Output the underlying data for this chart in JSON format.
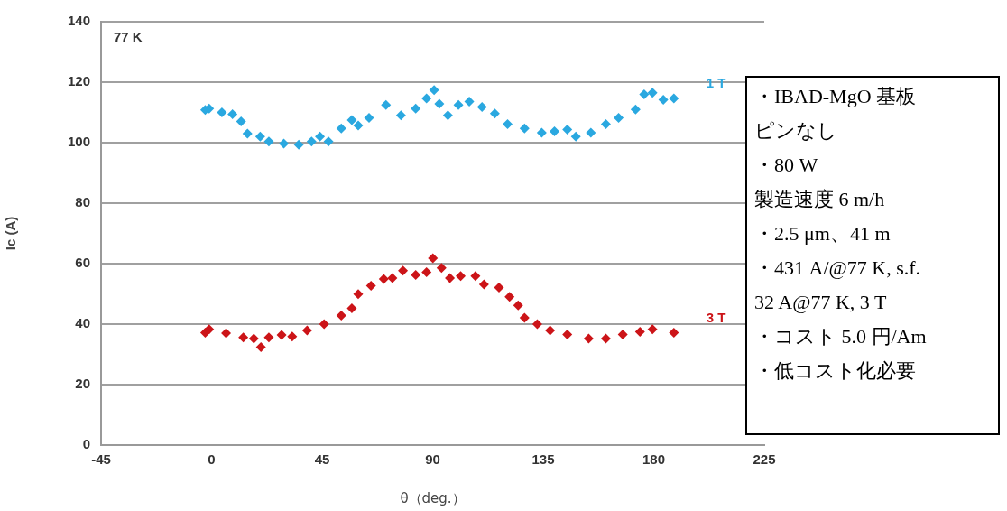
{
  "chart_data": {
    "type": "scatter",
    "xlabel": "θ（deg.）",
    "ylabel": "Ic (A)",
    "xlim": [
      -45,
      225
    ],
    "xticks": [
      -45,
      0,
      45,
      90,
      135,
      180,
      225
    ],
    "ylim": [
      0,
      140
    ],
    "yticks": [
      0,
      20,
      40,
      60,
      80,
      100,
      120,
      140
    ],
    "grid": "y",
    "legend": false,
    "marker": "diamond",
    "annotations": [
      "77 K",
      "・IBAD-MgO 基板",
      "ピンなし",
      "・80 W",
      "製造速度 6 m/h",
      "・2.5 μm、41 m",
      "・431 A/@77 K, s.f.",
      "32 A@77 K, 3 T",
      "・コスト 5.0 円/Am",
      "・低コスト化必要"
    ],
    "series": [
      {
        "name": "1 T",
        "color": "#2aa8e0",
        "x": [
          -2.6,
          -1,
          4.2,
          8.5,
          12,
          14.6,
          19.8,
          23.3,
          29.4,
          35.5,
          40.7,
          44.1,
          47.6,
          52.8,
          57.1,
          59.7,
          64.1,
          71,
          77.1,
          83.1,
          87.5,
          90.6,
          92.7,
          96.2,
          100.5,
          104.9,
          110.1,
          115.3,
          120.5,
          127.4,
          134.4,
          139.6,
          144.8,
          148.3,
          154.4,
          160.5,
          165.7,
          172.6,
          176.1,
          179.5,
          183.9,
          188.2
        ],
        "values": [
          110.8,
          111.3,
          110,
          109.4,
          107,
          103,
          102,
          100.4,
          99.7,
          99.3,
          100.4,
          102,
          100.4,
          104.7,
          107.5,
          105.7,
          108.2,
          112.5,
          109,
          111.3,
          114.6,
          117.4,
          112.8,
          109,
          112.5,
          113.6,
          111.8,
          109.6,
          106.1,
          104.7,
          103.3,
          103.7,
          104.3,
          102,
          103.3,
          106.1,
          108.2,
          111,
          116,
          116.5,
          114.2,
          114.6
        ]
      },
      {
        "name": "3 T",
        "color": "#cc1418",
        "x": [
          -2.6,
          -1,
          5.9,
          12.9,
          17.2,
          20.1,
          23.3,
          28.5,
          32.8,
          38.9,
          45.8,
          52.8,
          57.1,
          59.7,
          64.9,
          70.1,
          73.6,
          77.9,
          83.1,
          87.5,
          90.1,
          93.6,
          97,
          101.4,
          107.4,
          110.9,
          117,
          121.3,
          124.8,
          127.4,
          132.6,
          137.8,
          144.8,
          153.5,
          160.5,
          167.4,
          174.4,
          179.5,
          188.2
        ],
        "values": [
          37.2,
          38.3,
          37,
          35.6,
          35.2,
          32.4,
          35.6,
          36.4,
          35.9,
          37.9,
          40,
          42.8,
          45.2,
          49.9,
          52.7,
          54.9,
          55.2,
          57.7,
          56.3,
          57.2,
          61.8,
          58.6,
          55.2,
          55.9,
          55.9,
          53.1,
          52.1,
          49,
          46.2,
          42.1,
          40,
          37.9,
          36.6,
          35.2,
          35.2,
          36.6,
          37.5,
          38.3,
          37.2
        ]
      }
    ]
  }
}
